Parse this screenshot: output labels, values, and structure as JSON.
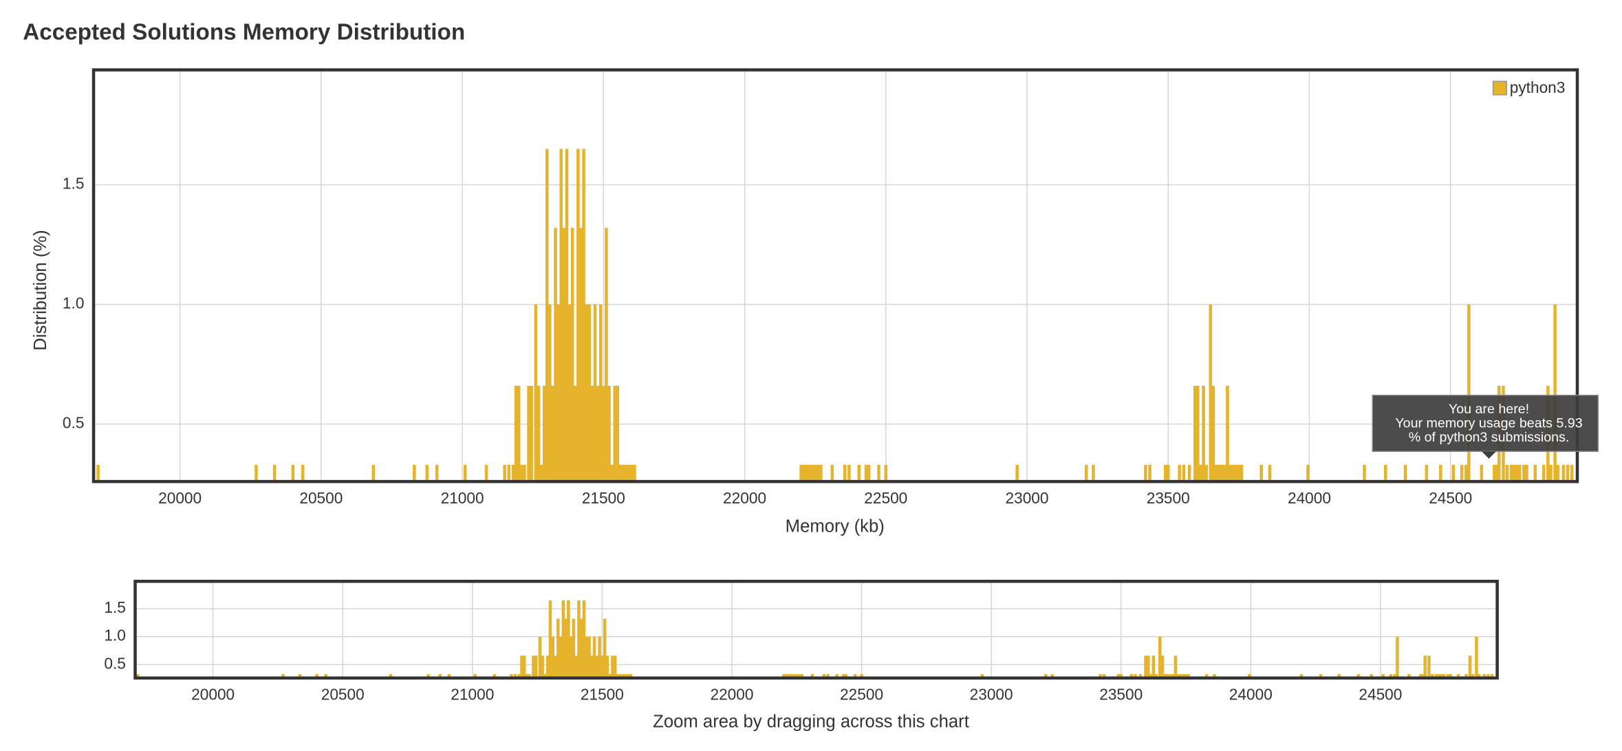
{
  "chart_data": {
    "type": "bar",
    "title": "Accepted Solutions Memory Distribution",
    "x_label": "Memory (kb)",
    "y_label": "Distribution (%)",
    "legend_position": "top-right",
    "grid": true,
    "xlim": [
      19694,
      24949
    ],
    "ylim": [
      0.26,
      1.98
    ],
    "xticks": [
      20000,
      20500,
      21000,
      21500,
      22000,
      22500,
      23000,
      23500,
      24000,
      24500
    ],
    "yticks": [
      {
        "value": 0.5,
        "label": "0.5"
      },
      {
        "value": 1,
        "label": "1.0"
      },
      {
        "value": 1.5,
        "label": "1.5"
      }
    ],
    "x": [
      19710,
      20270,
      20335,
      20400,
      20435,
      20685,
      20830,
      20875,
      20910,
      21010,
      21085,
      21150,
      21165,
      21180,
      21190,
      21200,
      21210,
      21220,
      21235,
      21245,
      21260,
      21270,
      21280,
      21290,
      21300,
      21310,
      21320,
      21330,
      21340,
      21350,
      21360,
      21370,
      21380,
      21390,
      21400,
      21410,
      21420,
      21430,
      21440,
      21450,
      21460,
      21470,
      21480,
      21490,
      21500,
      21510,
      21520,
      21530,
      21540,
      21550,
      21560,
      21570,
      21580,
      21590,
      21600,
      21610,
      22200,
      22210,
      22220,
      22230,
      22240,
      22250,
      22260,
      22270,
      22310,
      22355,
      22370,
      22405,
      22430,
      22440,
      22475,
      22500,
      22965,
      23210,
      23235,
      23420,
      23435,
      23490,
      23500,
      23540,
      23555,
      23575,
      23595,
      23605,
      23615,
      23625,
      23635,
      23650,
      23660,
      23670,
      23680,
      23690,
      23700,
      23710,
      23720,
      23730,
      23740,
      23750,
      23760,
      23830,
      23860,
      23995,
      24195,
      24270,
      24340,
      24415,
      24465,
      24510,
      24540,
      24555,
      24565,
      24610,
      24655,
      24665,
      24672,
      24687,
      24700,
      24715,
      24725,
      24735,
      24745,
      24760,
      24770,
      24800,
      24830,
      24845,
      24855,
      24870,
      24880,
      24900,
      24915,
      24930
    ],
    "series": [
      {
        "name": "python3",
        "color": "#e6b42c",
        "values": [
          0.33,
          0.33,
          0.33,
          0.33,
          0.33,
          0.33,
          0.33,
          0.33,
          0.33,
          0.33,
          0.33,
          0.33,
          0.33,
          0.33,
          0.66,
          0.66,
          0.33,
          0.33,
          0.66,
          0.66,
          1.0,
          0.66,
          0.33,
          0.66,
          1.65,
          1.0,
          0.66,
          1.32,
          1.0,
          1.65,
          1.32,
          1.65,
          1.0,
          1.32,
          0.66,
          1.65,
          1.32,
          1.65,
          1.0,
          1.0,
          0.66,
          1.0,
          0.66,
          1.0,
          0.66,
          1.32,
          0.66,
          0.33,
          0.66,
          0.66,
          0.33,
          0.33,
          0.33,
          0.33,
          0.33,
          0.33,
          0.33,
          0.33,
          0.33,
          0.33,
          0.33,
          0.33,
          0.33,
          0.33,
          0.33,
          0.33,
          0.33,
          0.33,
          0.33,
          0.33,
          0.33,
          0.33,
          0.33,
          0.33,
          0.33,
          0.33,
          0.33,
          0.33,
          0.33,
          0.33,
          0.33,
          0.33,
          0.66,
          0.66,
          0.33,
          0.66,
          0.33,
          1.0,
          0.66,
          0.33,
          0.33,
          0.33,
          0.33,
          0.66,
          0.33,
          0.33,
          0.33,
          0.33,
          0.33,
          0.33,
          0.33,
          0.33,
          0.33,
          0.33,
          0.33,
          0.33,
          0.33,
          0.33,
          0.33,
          0.33,
          1.0,
          0.33,
          0.33,
          0.33,
          0.66,
          0.66,
          0.33,
          0.33,
          0.33,
          0.33,
          0.33,
          0.33,
          0.33,
          0.33,
          0.33,
          0.66,
          0.33,
          1.0,
          0.33,
          0.33,
          0.33,
          0.33
        ]
      }
    ],
    "tooltip": [
      "You are here!",
      "Your memory usage beats 5.93",
      "% of python3 submissions."
    ],
    "navigator": {
      "label": "Zoom area by dragging across this chart",
      "xlim": [
        19700,
        24950
      ],
      "ylim": [
        0.26,
        1.99
      ],
      "xticks": [
        20000,
        20500,
        21000,
        21500,
        22000,
        22500,
        23000,
        23500,
        24000,
        24500
      ],
      "yticks": [
        {
          "value": 0.5,
          "label": "0.5"
        },
        {
          "value": 1,
          "label": "1.0"
        },
        {
          "value": 1.5,
          "label": "1.5"
        }
      ]
    }
  }
}
